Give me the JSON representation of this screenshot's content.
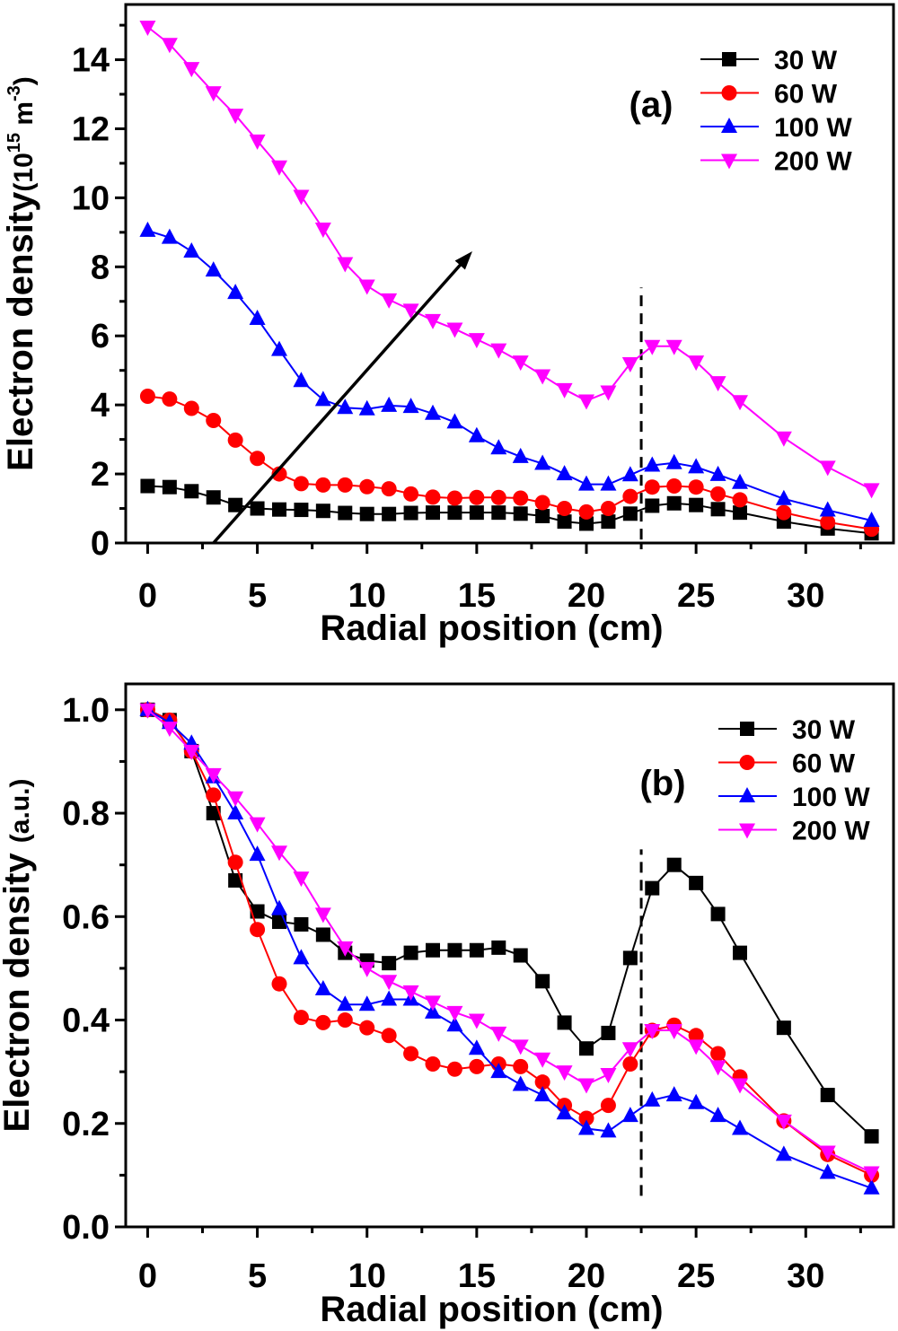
{
  "chart_data": [
    {
      "type": "line",
      "panel_label": "(a)",
      "xlabel": "Radial position (cm)",
      "ylabel_main": "Electron density",
      "ylabel_unit": "(10",
      "ylabel_exp1": "15",
      "ylabel_unit2": " m",
      "ylabel_exp2": "-3",
      "ylabel_close": ")",
      "xlim": [
        -1,
        34
      ],
      "ylim": [
        0,
        15.6
      ],
      "xticks": [
        0,
        5,
        10,
        15,
        20,
        25,
        30
      ],
      "yticks": [
        0,
        2,
        4,
        6,
        8,
        10,
        12,
        14
      ],
      "legend_position": "top-right",
      "dashed_line_x": 22.5,
      "dashed_line_y": [
        0.1,
        7.4
      ],
      "arrow": {
        "from": [
          3,
          0
        ],
        "to": [
          14.8,
          8.45
        ]
      },
      "x": [
        0,
        1,
        2,
        3,
        4,
        5,
        6,
        7,
        8,
        9,
        10,
        11,
        12,
        13,
        14,
        15,
        16,
        17,
        18,
        19,
        20,
        21,
        22,
        23,
        24,
        25,
        26,
        27,
        29,
        31,
        33
      ],
      "series": [
        {
          "name": "30 W",
          "color": "#000000",
          "marker": "square",
          "values": [
            1.65,
            1.62,
            1.5,
            1.32,
            1.1,
            1.0,
            0.97,
            0.96,
            0.93,
            0.87,
            0.84,
            0.84,
            0.87,
            0.88,
            0.88,
            0.88,
            0.88,
            0.85,
            0.78,
            0.62,
            0.56,
            0.62,
            0.85,
            1.08,
            1.15,
            1.1,
            0.98,
            0.88,
            0.62,
            0.42,
            0.28
          ]
        },
        {
          "name": "60 W",
          "color": "#ff0000",
          "marker": "circle",
          "values": [
            4.25,
            4.17,
            3.9,
            3.55,
            2.98,
            2.45,
            2.0,
            1.72,
            1.68,
            1.68,
            1.63,
            1.57,
            1.42,
            1.33,
            1.3,
            1.32,
            1.32,
            1.3,
            1.17,
            1.0,
            0.9,
            1.0,
            1.35,
            1.62,
            1.65,
            1.62,
            1.42,
            1.25,
            0.88,
            0.6,
            0.4
          ]
        },
        {
          "name": "100 W",
          "color": "#0000ff",
          "marker": "triangle-up",
          "values": [
            9.05,
            8.85,
            8.45,
            7.9,
            7.25,
            6.5,
            5.6,
            4.7,
            4.15,
            3.92,
            3.88,
            3.98,
            3.95,
            3.75,
            3.5,
            3.1,
            2.75,
            2.5,
            2.3,
            2.0,
            1.7,
            1.7,
            1.97,
            2.25,
            2.32,
            2.2,
            1.98,
            1.75,
            1.28,
            0.95,
            0.65
          ]
        },
        {
          "name": "200 W",
          "color": "#ff00ff",
          "marker": "triangle-down",
          "values": [
            14.95,
            14.45,
            13.75,
            13.05,
            12.4,
            11.65,
            10.9,
            10.05,
            9.1,
            8.1,
            7.45,
            7.05,
            6.75,
            6.45,
            6.2,
            5.9,
            5.6,
            5.25,
            4.85,
            4.45,
            4.12,
            4.38,
            5.2,
            5.7,
            5.7,
            5.25,
            4.65,
            4.1,
            3.05,
            2.2,
            1.55
          ]
        }
      ]
    },
    {
      "type": "line",
      "panel_label": "(b)",
      "xlabel": "Radial position (cm)",
      "ylabel_main": "Electron density ",
      "ylabel_unit": "(a.u.)",
      "xlim": [
        -1,
        34
      ],
      "ylim": [
        0,
        1.05
      ],
      "xticks": [
        0,
        5,
        10,
        15,
        20,
        25,
        30
      ],
      "yticks": [
        "0.0",
        "0.2",
        "0.4",
        "0.6",
        "0.8",
        "1.0"
      ],
      "legend_position": "top-right",
      "dashed_line_x": 22.5,
      "dashed_line_y": [
        0.06,
        0.73
      ],
      "x": [
        0,
        1,
        2,
        3,
        4,
        5,
        6,
        7,
        8,
        9,
        10,
        11,
        12,
        13,
        14,
        15,
        16,
        17,
        18,
        19,
        20,
        21,
        22,
        23,
        24,
        25,
        26,
        27,
        29,
        31,
        33
      ],
      "series": [
        {
          "name": "30 W",
          "color": "#000000",
          "marker": "square",
          "values": [
            1.0,
            0.98,
            0.92,
            0.8,
            0.67,
            0.61,
            0.59,
            0.585,
            0.565,
            0.53,
            0.515,
            0.51,
            0.53,
            0.535,
            0.535,
            0.535,
            0.54,
            0.525,
            0.475,
            0.395,
            0.345,
            0.375,
            0.52,
            0.655,
            0.7,
            0.665,
            0.605,
            0.53,
            0.385,
            0.255,
            0.175
          ]
        },
        {
          "name": "60 W",
          "color": "#ff0000",
          "marker": "circle",
          "values": [
            1.0,
            0.98,
            0.92,
            0.835,
            0.705,
            0.575,
            0.47,
            0.405,
            0.395,
            0.4,
            0.385,
            0.37,
            0.335,
            0.315,
            0.305,
            0.31,
            0.315,
            0.31,
            0.28,
            0.235,
            0.21,
            0.235,
            0.315,
            0.38,
            0.39,
            0.37,
            0.335,
            0.29,
            0.205,
            0.14,
            0.1
          ]
        },
        {
          "name": "100 W",
          "color": "#0000ff",
          "marker": "triangle-up",
          "values": [
            1.0,
            0.975,
            0.935,
            0.87,
            0.8,
            0.72,
            0.615,
            0.52,
            0.46,
            0.43,
            0.43,
            0.44,
            0.44,
            0.415,
            0.39,
            0.345,
            0.3,
            0.275,
            0.255,
            0.22,
            0.19,
            0.185,
            0.215,
            0.245,
            0.255,
            0.24,
            0.215,
            0.19,
            0.14,
            0.105,
            0.075
          ]
        },
        {
          "name": "200 W",
          "color": "#ff00ff",
          "marker": "triangle-down",
          "values": [
            1.0,
            0.965,
            0.92,
            0.875,
            0.83,
            0.78,
            0.725,
            0.675,
            0.605,
            0.54,
            0.5,
            0.475,
            0.455,
            0.435,
            0.415,
            0.4,
            0.375,
            0.35,
            0.325,
            0.3,
            0.275,
            0.295,
            0.345,
            0.38,
            0.38,
            0.35,
            0.31,
            0.275,
            0.205,
            0.145,
            0.105
          ]
        }
      ]
    }
  ]
}
